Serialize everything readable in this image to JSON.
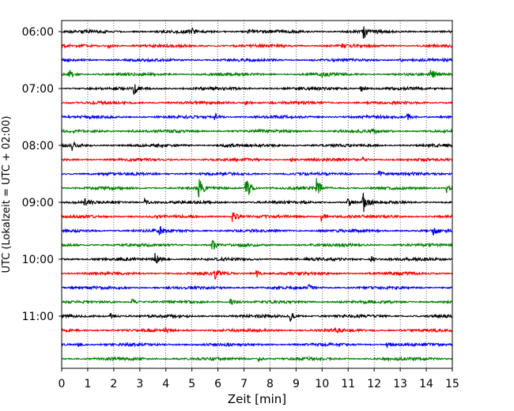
{
  "chart_data": {
    "type": "line",
    "title": "",
    "xlabel": "Zeit  [min]",
    "ylabel": "UTC (Lokalzeit = UTC + 02:00)",
    "xlim": [
      0,
      15
    ],
    "x_ticks": [
      "0",
      "1",
      "2",
      "3",
      "4",
      "5",
      "6",
      "7",
      "8",
      "9",
      "10",
      "11",
      "12",
      "13",
      "14",
      "15"
    ],
    "y_tick_labels": [
      "06:00",
      "07:00",
      "08:00",
      "09:00",
      "10:00",
      "11:00"
    ],
    "grid": "vertical dotted",
    "legend": "none",
    "trace_interval_min": 15,
    "series": [
      {
        "start": "06:00",
        "color": "#000000",
        "events": [
          [
            5.0,
            0.5
          ],
          [
            7.2,
            0.6
          ],
          [
            11.6,
            1.2
          ]
        ]
      },
      {
        "start": "06:15",
        "color": "#ff0000",
        "events": [
          [
            1.8,
            0.5
          ],
          [
            10.8,
            0.4
          ]
        ]
      },
      {
        "start": "06:30",
        "color": "#0000ff",
        "events": [
          [
            13.0,
            0.4
          ]
        ]
      },
      {
        "start": "06:45",
        "color": "#008000",
        "events": [
          [
            0.3,
            0.9
          ],
          [
            10.0,
            0.7
          ],
          [
            14.2,
            0.9
          ]
        ]
      },
      {
        "start": "07:00",
        "color": "#000000",
        "events": [
          [
            2.8,
            1.1
          ],
          [
            11.5,
            0.8
          ]
        ]
      },
      {
        "start": "07:15",
        "color": "#ff0000",
        "events": [
          [
            7.1,
            0.5
          ]
        ]
      },
      {
        "start": "07:30",
        "color": "#0000ff",
        "events": [
          [
            5.9,
            0.6
          ],
          [
            13.3,
            0.5
          ]
        ]
      },
      {
        "start": "07:45",
        "color": "#008000",
        "events": [
          [
            2.6,
            0.4
          ],
          [
            12.0,
            0.4
          ]
        ]
      },
      {
        "start": "08:00",
        "color": "#000000",
        "events": [
          [
            0.4,
            0.9
          ],
          [
            6.3,
            0.5
          ]
        ]
      },
      {
        "start": "08:15",
        "color": "#ff0000",
        "events": [
          [
            8.8,
            0.5
          ],
          [
            11.6,
            0.4
          ]
        ]
      },
      {
        "start": "08:30",
        "color": "#0000ff",
        "events": [
          [
            12.2,
            0.6
          ]
        ]
      },
      {
        "start": "08:45",
        "color": "#008000",
        "events": [
          [
            5.3,
            1.7
          ],
          [
            7.1,
            2.5
          ],
          [
            9.8,
            2.2
          ],
          [
            14.8,
            1.0
          ]
        ]
      },
      {
        "start": "09:00",
        "color": "#000000",
        "events": [
          [
            0.9,
            0.6
          ],
          [
            3.2,
            0.7
          ],
          [
            11.6,
            2.1
          ],
          [
            11.0,
            1.0
          ]
        ]
      },
      {
        "start": "09:15",
        "color": "#ff0000",
        "events": [
          [
            6.6,
            1.1
          ],
          [
            10.0,
            1.0
          ]
        ]
      },
      {
        "start": "09:30",
        "color": "#0000ff",
        "events": [
          [
            3.8,
            0.6
          ],
          [
            14.3,
            0.7
          ]
        ]
      },
      {
        "start": "09:45",
        "color": "#008000",
        "events": [
          [
            5.8,
            1.0
          ]
        ]
      },
      {
        "start": "10:00",
        "color": "#000000",
        "events": [
          [
            3.6,
            1.2
          ],
          [
            11.9,
            0.8
          ]
        ]
      },
      {
        "start": "10:15",
        "color": "#ff0000",
        "events": [
          [
            5.9,
            1.0
          ],
          [
            7.5,
            0.7
          ]
        ]
      },
      {
        "start": "10:30",
        "color": "#0000ff",
        "events": [
          [
            9.5,
            0.4
          ]
        ]
      },
      {
        "start": "10:45",
        "color": "#008000",
        "events": [
          [
            2.7,
            0.6
          ],
          [
            6.5,
            0.8
          ]
        ]
      },
      {
        "start": "11:00",
        "color": "#000000",
        "events": [
          [
            1.9,
            0.6
          ],
          [
            8.8,
            1.1
          ]
        ]
      },
      {
        "start": "11:15",
        "color": "#ff0000",
        "events": [
          [
            4.0,
            0.5
          ],
          [
            10.5,
            0.8
          ]
        ]
      },
      {
        "start": "11:30",
        "color": "#0000ff",
        "events": [
          [
            0.6,
            0.4
          ],
          [
            12.5,
            0.4
          ]
        ]
      },
      {
        "start": "11:45",
        "color": "#008000",
        "events": [
          [
            7.6,
            0.4
          ]
        ]
      }
    ]
  }
}
